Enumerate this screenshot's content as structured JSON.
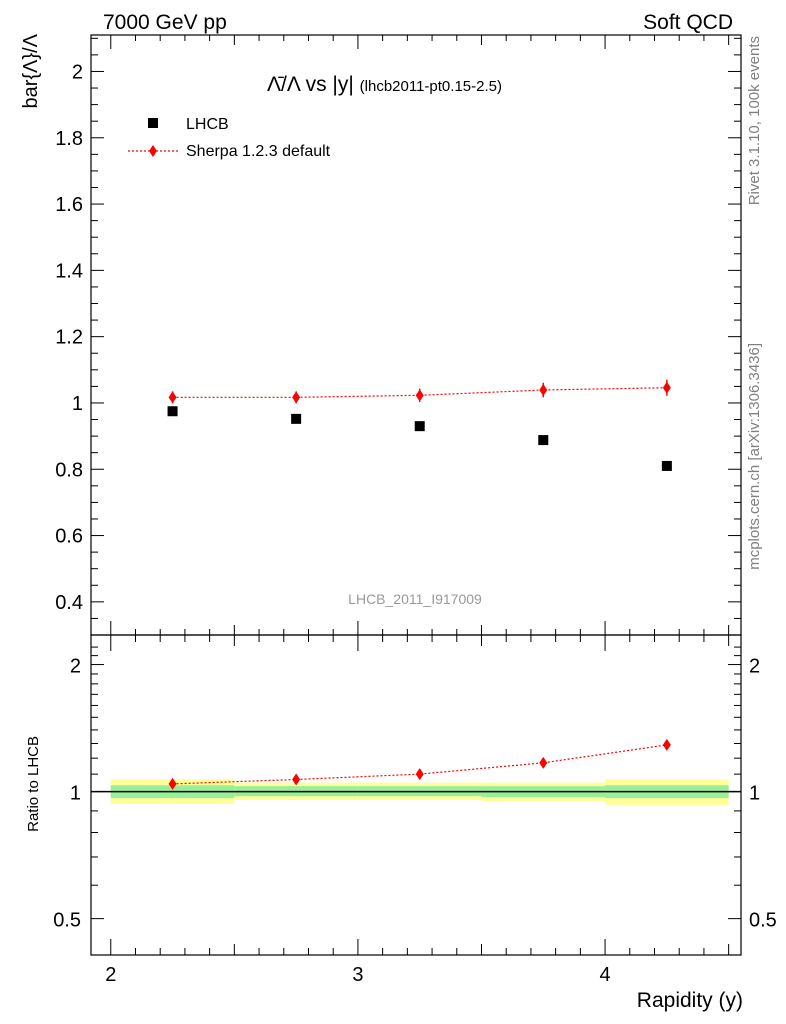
{
  "header": {
    "left": "7000 GeV pp",
    "right": "Soft QCD"
  },
  "side_labels": {
    "rivet": "Rivet 3.1.10,  100k events",
    "mcplots": "mcplots.cern.ch [arXiv:1306.3436]"
  },
  "chart_data": [
    {
      "type": "scatter",
      "title_main": "Λ̄/Λ vs |y|",
      "title_sub": "(lhcb2011-pt0.15-2.5)",
      "ylabel": "bar{Λ}/Λ",
      "watermark": "LHCB_2011_I917009",
      "xlim": [
        1.92,
        4.55
      ],
      "ylim": [
        0.3,
        2.11
      ],
      "yticks": [
        0.4,
        0.6,
        0.8,
        1,
        1.2,
        1.4,
        1.6,
        1.8,
        2
      ],
      "ytick_labels": [
        "0.4",
        "0.6",
        "0.8",
        "1",
        "1.2",
        "1.4",
        "1.6",
        "1.8",
        "2"
      ],
      "legend": {
        "position": "top-left",
        "entries": [
          "LHCB",
          "Sherpa 1.2.3 default"
        ]
      },
      "series": [
        {
          "name": "LHCB",
          "color": "#000000",
          "marker": "square",
          "x": [
            2.25,
            2.75,
            3.25,
            3.75,
            4.25
          ],
          "y": [
            0.975,
            0.952,
            0.93,
            0.888,
            0.81
          ],
          "x_bins": [
            [
              2.0,
              2.5
            ],
            [
              2.5,
              3.0
            ],
            [
              3.0,
              3.5
            ],
            [
              3.5,
              4.0
            ],
            [
              4.0,
              4.5
            ]
          ]
        },
        {
          "name": "Sherpa 1.2.3 default",
          "color": "#ff0000",
          "marker": "diamond",
          "line": "dotted",
          "x": [
            2.25,
            2.75,
            3.25,
            3.75,
            4.25
          ],
          "y": [
            1.017,
            1.017,
            1.023,
            1.039,
            1.046
          ],
          "yerr": [
            0.018,
            0.018,
            0.02,
            0.022,
            0.024
          ]
        }
      ]
    },
    {
      "type": "scatter",
      "ylabel": "Ratio to LHCB",
      "xlabel": "Rapidity (y)",
      "scale": "log",
      "ylim": [
        0.41,
        2.35
      ],
      "xlim": [
        1.92,
        4.55
      ],
      "yticks": [
        0.5,
        1,
        2
      ],
      "ytick_labels": [
        "0.5",
        "1",
        "2"
      ],
      "xticks": [
        2,
        3,
        4
      ],
      "xtick_labels": [
        "2",
        "3",
        "4"
      ],
      "reference_line": 1,
      "bands": [
        {
          "x": [
            2.0,
            2.5
          ],
          "stat_lo": 0.965,
          "stat_hi": 1.035,
          "tot_lo": 0.935,
          "tot_hi": 1.07
        },
        {
          "x": [
            2.5,
            3.0
          ],
          "stat_lo": 0.975,
          "stat_hi": 1.03,
          "tot_lo": 0.955,
          "tot_hi": 1.05
        },
        {
          "x": [
            3.0,
            3.5
          ],
          "stat_lo": 0.975,
          "stat_hi": 1.03,
          "tot_lo": 0.955,
          "tot_hi": 1.05
        },
        {
          "x": [
            3.5,
            4.0
          ],
          "stat_lo": 0.97,
          "stat_hi": 1.03,
          "tot_lo": 0.95,
          "tot_hi": 1.05
        },
        {
          "x": [
            4.0,
            4.5
          ],
          "stat_lo": 0.965,
          "stat_hi": 1.035,
          "tot_lo": 0.93,
          "tot_hi": 1.07
        }
      ],
      "band_colors": {
        "stat": "#99ee99",
        "total": "#ffff99"
      },
      "series": [
        {
          "name": "Sherpa 1.2.3 default",
          "color": "#ff0000",
          "x": [
            2.25,
            2.75,
            3.25,
            3.75,
            4.25
          ],
          "y": [
            1.043,
            1.068,
            1.1,
            1.17,
            1.29
          ]
        }
      ]
    }
  ]
}
